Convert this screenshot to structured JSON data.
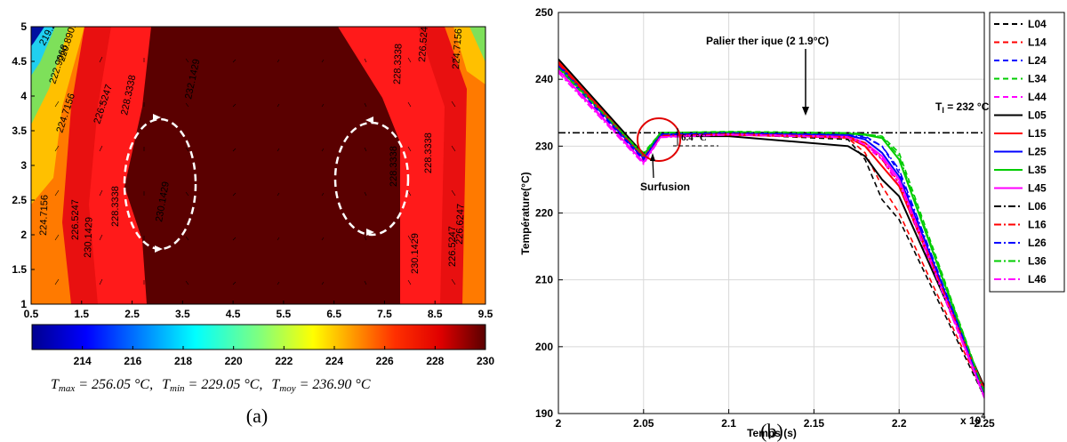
{
  "panel_a": {
    "label": "(a)",
    "caption": {
      "tmax_symbol": "T",
      "tmax_sub": "max",
      "tmax_val": " = 256.05 °C,",
      "tmin_symbol": "T",
      "tmin_sub": "min",
      "tmin_val": " = 229.05 °C,",
      "tmoy_symbol": "T",
      "tmoy_sub": "moy",
      "tmoy_val": " = 236.90 °C"
    }
  },
  "panel_b": {
    "label": "(b)",
    "annotations": {
      "palier": "Palier ther  ique (2  1.9°C)",
      "tl_prefix": "T",
      "tl_sub": "l",
      "tl_suffix": " = 232 °C",
      "delta": "6.4 °C",
      "surfusion": "Surfusion"
    },
    "x_multiplier": "x 10",
    "x_multiplier_exp": "4"
  },
  "colors": {
    "contour_dark": "#5a0000",
    "contour_red": "#ff1a1a",
    "orange": "#ff7a00",
    "yellow": "#ffc000",
    "green": "#7ee05a",
    "cyan": "#20d0f0",
    "blue": "#0010a0",
    "annotation_circle": "#e00000",
    "dashed_ellipse": "#ffffff"
  },
  "chart_data": [
    {
      "type": "heatmap",
      "title": "",
      "xlabel": "",
      "ylabel": "",
      "xlim": [
        0.5,
        9.5
      ],
      "ylim": [
        1,
        5
      ],
      "x_ticks": [
        "0.5",
        "1.5",
        "2.5",
        "3.5",
        "4.5",
        "5.5",
        "6.5",
        "7.5",
        "8.5",
        "9.5"
      ],
      "y_ticks": [
        "1",
        "1.5",
        "2",
        "2.5",
        "3",
        "3.5",
        "4",
        "4.5",
        "5"
      ],
      "colorbar": {
        "range": [
          212,
          230
        ],
        "ticks": [
          "214",
          "216",
          "218",
          "220",
          "222",
          "224",
          "226",
          "228",
          "230"
        ],
        "colormap": "jet"
      },
      "contour_labels_left": [
        "219.2987",
        "220.8901",
        "222.9068",
        "224.7156",
        "226.5247",
        "228.3338",
        "230.1429",
        "224.7156",
        "226.5247",
        "228.3338",
        "230.1429"
      ],
      "contour_labels_right": [
        "232.1429",
        "228.3338",
        "226.5247",
        "224.7156",
        "226.6247",
        "228.3338",
        "230.1429",
        "228.3338",
        "226.5247"
      ]
    },
    {
      "type": "line",
      "title": "",
      "xlabel": "Temps (s)",
      "ylabel": "Température(°C)",
      "xlim": [
        2.0,
        2.25
      ],
      "ylim": [
        190,
        250
      ],
      "x_ticks": [
        "2",
        "2.05",
        "2.1",
        "2.15",
        "2.2",
        "2.25"
      ],
      "y_ticks": [
        "190",
        "200",
        "210",
        "220",
        "230",
        "240",
        "250"
      ],
      "grid": true,
      "legend_position": "right outside",
      "reference_line": {
        "name": "L06",
        "y": 232
      },
      "series": [
        {
          "name": "L04",
          "color": "#000000",
          "dash": "dashed",
          "x": [
            2.0,
            2.05,
            2.06,
            2.1,
            2.17,
            2.18,
            2.19,
            2.2,
            2.25
          ],
          "y": [
            242.5,
            228.5,
            231.5,
            231.8,
            231.0,
            228.0,
            222.0,
            219.0,
            192.5
          ]
        },
        {
          "name": "L14",
          "color": "#ff0000",
          "dash": "dashed",
          "x": [
            2.0,
            2.05,
            2.06,
            2.1,
            2.17,
            2.18,
            2.19,
            2.2,
            2.25
          ],
          "y": [
            242.0,
            228.0,
            231.6,
            231.8,
            231.2,
            229.0,
            224.0,
            220.0,
            192.8
          ]
        },
        {
          "name": "L24",
          "color": "#0000ff",
          "dash": "dashed",
          "x": [
            2.0,
            2.05,
            2.06,
            2.1,
            2.17,
            2.18,
            2.19,
            2.2,
            2.25
          ],
          "y": [
            241.8,
            227.8,
            231.8,
            232.0,
            231.8,
            231.5,
            230.0,
            226.0,
            193.0
          ]
        },
        {
          "name": "L34",
          "color": "#00cc00",
          "dash": "dashed",
          "x": [
            2.0,
            2.05,
            2.06,
            2.1,
            2.17,
            2.18,
            2.19,
            2.2,
            2.25
          ],
          "y": [
            241.5,
            229.0,
            232.0,
            232.2,
            232.0,
            231.8,
            231.5,
            229.0,
            193.2
          ]
        },
        {
          "name": "L44",
          "color": "#ff00ff",
          "dash": "dashed",
          "x": [
            2.0,
            2.05,
            2.06,
            2.1,
            2.17,
            2.18,
            2.19,
            2.2,
            2.25
          ],
          "y": [
            241.2,
            227.5,
            231.5,
            231.9,
            231.5,
            230.0,
            228.0,
            224.0,
            192.5
          ]
        },
        {
          "name": "L05",
          "color": "#000000",
          "dash": "solid",
          "x": [
            2.0,
            2.05,
            2.06,
            2.1,
            2.17,
            2.18,
            2.19,
            2.2,
            2.25
          ],
          "y": [
            243.0,
            228.8,
            231.5,
            231.5,
            230.0,
            228.5,
            225.0,
            222.5,
            194.0
          ]
        },
        {
          "name": "L15",
          "color": "#ff0000",
          "dash": "solid",
          "x": [
            2.0,
            2.05,
            2.06,
            2.1,
            2.17,
            2.18,
            2.19,
            2.2,
            2.25
          ],
          "y": [
            242.6,
            228.4,
            231.6,
            231.7,
            231.3,
            230.0,
            227.0,
            224.0,
            193.6
          ]
        },
        {
          "name": "L25",
          "color": "#0000ff",
          "dash": "solid",
          "x": [
            2.0,
            2.05,
            2.06,
            2.1,
            2.17,
            2.18,
            2.19,
            2.2,
            2.25
          ],
          "y": [
            242.2,
            228.2,
            231.7,
            231.9,
            231.6,
            231.0,
            229.0,
            225.5,
            193.3
          ]
        },
        {
          "name": "L35",
          "color": "#00cc00",
          "dash": "solid",
          "x": [
            2.0,
            2.05,
            2.06,
            2.1,
            2.17,
            2.18,
            2.19,
            2.2,
            2.25
          ],
          "y": [
            241.9,
            228.6,
            232.0,
            232.1,
            231.9,
            231.7,
            231.2,
            228.0,
            193.1
          ]
        },
        {
          "name": "L45",
          "color": "#ff00ff",
          "dash": "solid",
          "x": [
            2.0,
            2.05,
            2.06,
            2.1,
            2.17,
            2.18,
            2.19,
            2.2,
            2.25
          ],
          "y": [
            241.4,
            227.6,
            231.4,
            231.8,
            231.4,
            230.5,
            228.5,
            225.0,
            192.6
          ]
        },
        {
          "name": "L06",
          "color": "#000000",
          "dash": "dashdot",
          "x": [
            2.0,
            2.25
          ],
          "y": [
            232.0,
            232.0
          ]
        },
        {
          "name": "L16",
          "color": "#ff0000",
          "dash": "dashdot",
          "x": [
            2.0,
            2.05,
            2.06,
            2.1,
            2.17,
            2.18,
            2.19,
            2.2,
            2.25
          ],
          "y": [
            242.3,
            228.3,
            231.6,
            231.8,
            231.4,
            230.5,
            228.0,
            224.5,
            193.4
          ]
        },
        {
          "name": "L26",
          "color": "#0000ff",
          "dash": "dashdot",
          "x": [
            2.0,
            2.05,
            2.06,
            2.1,
            2.17,
            2.18,
            2.19,
            2.2,
            2.25
          ],
          "y": [
            242.0,
            228.1,
            231.8,
            232.0,
            231.7,
            231.3,
            230.0,
            226.5,
            193.0
          ]
        },
        {
          "name": "L36",
          "color": "#00cc00",
          "dash": "dashdot",
          "x": [
            2.0,
            2.05,
            2.06,
            2.1,
            2.17,
            2.18,
            2.19,
            2.2,
            2.25
          ],
          "y": [
            241.7,
            228.8,
            232.0,
            232.1,
            232.0,
            231.8,
            231.4,
            228.5,
            193.2
          ]
        },
        {
          "name": "L46",
          "color": "#ff00ff",
          "dash": "dashdot",
          "x": [
            2.0,
            2.05,
            2.06,
            2.1,
            2.17,
            2.18,
            2.19,
            2.2,
            2.25
          ],
          "y": [
            241.0,
            227.3,
            231.3,
            231.7,
            231.3,
            230.2,
            228.2,
            224.5,
            192.3
          ]
        }
      ]
    }
  ]
}
